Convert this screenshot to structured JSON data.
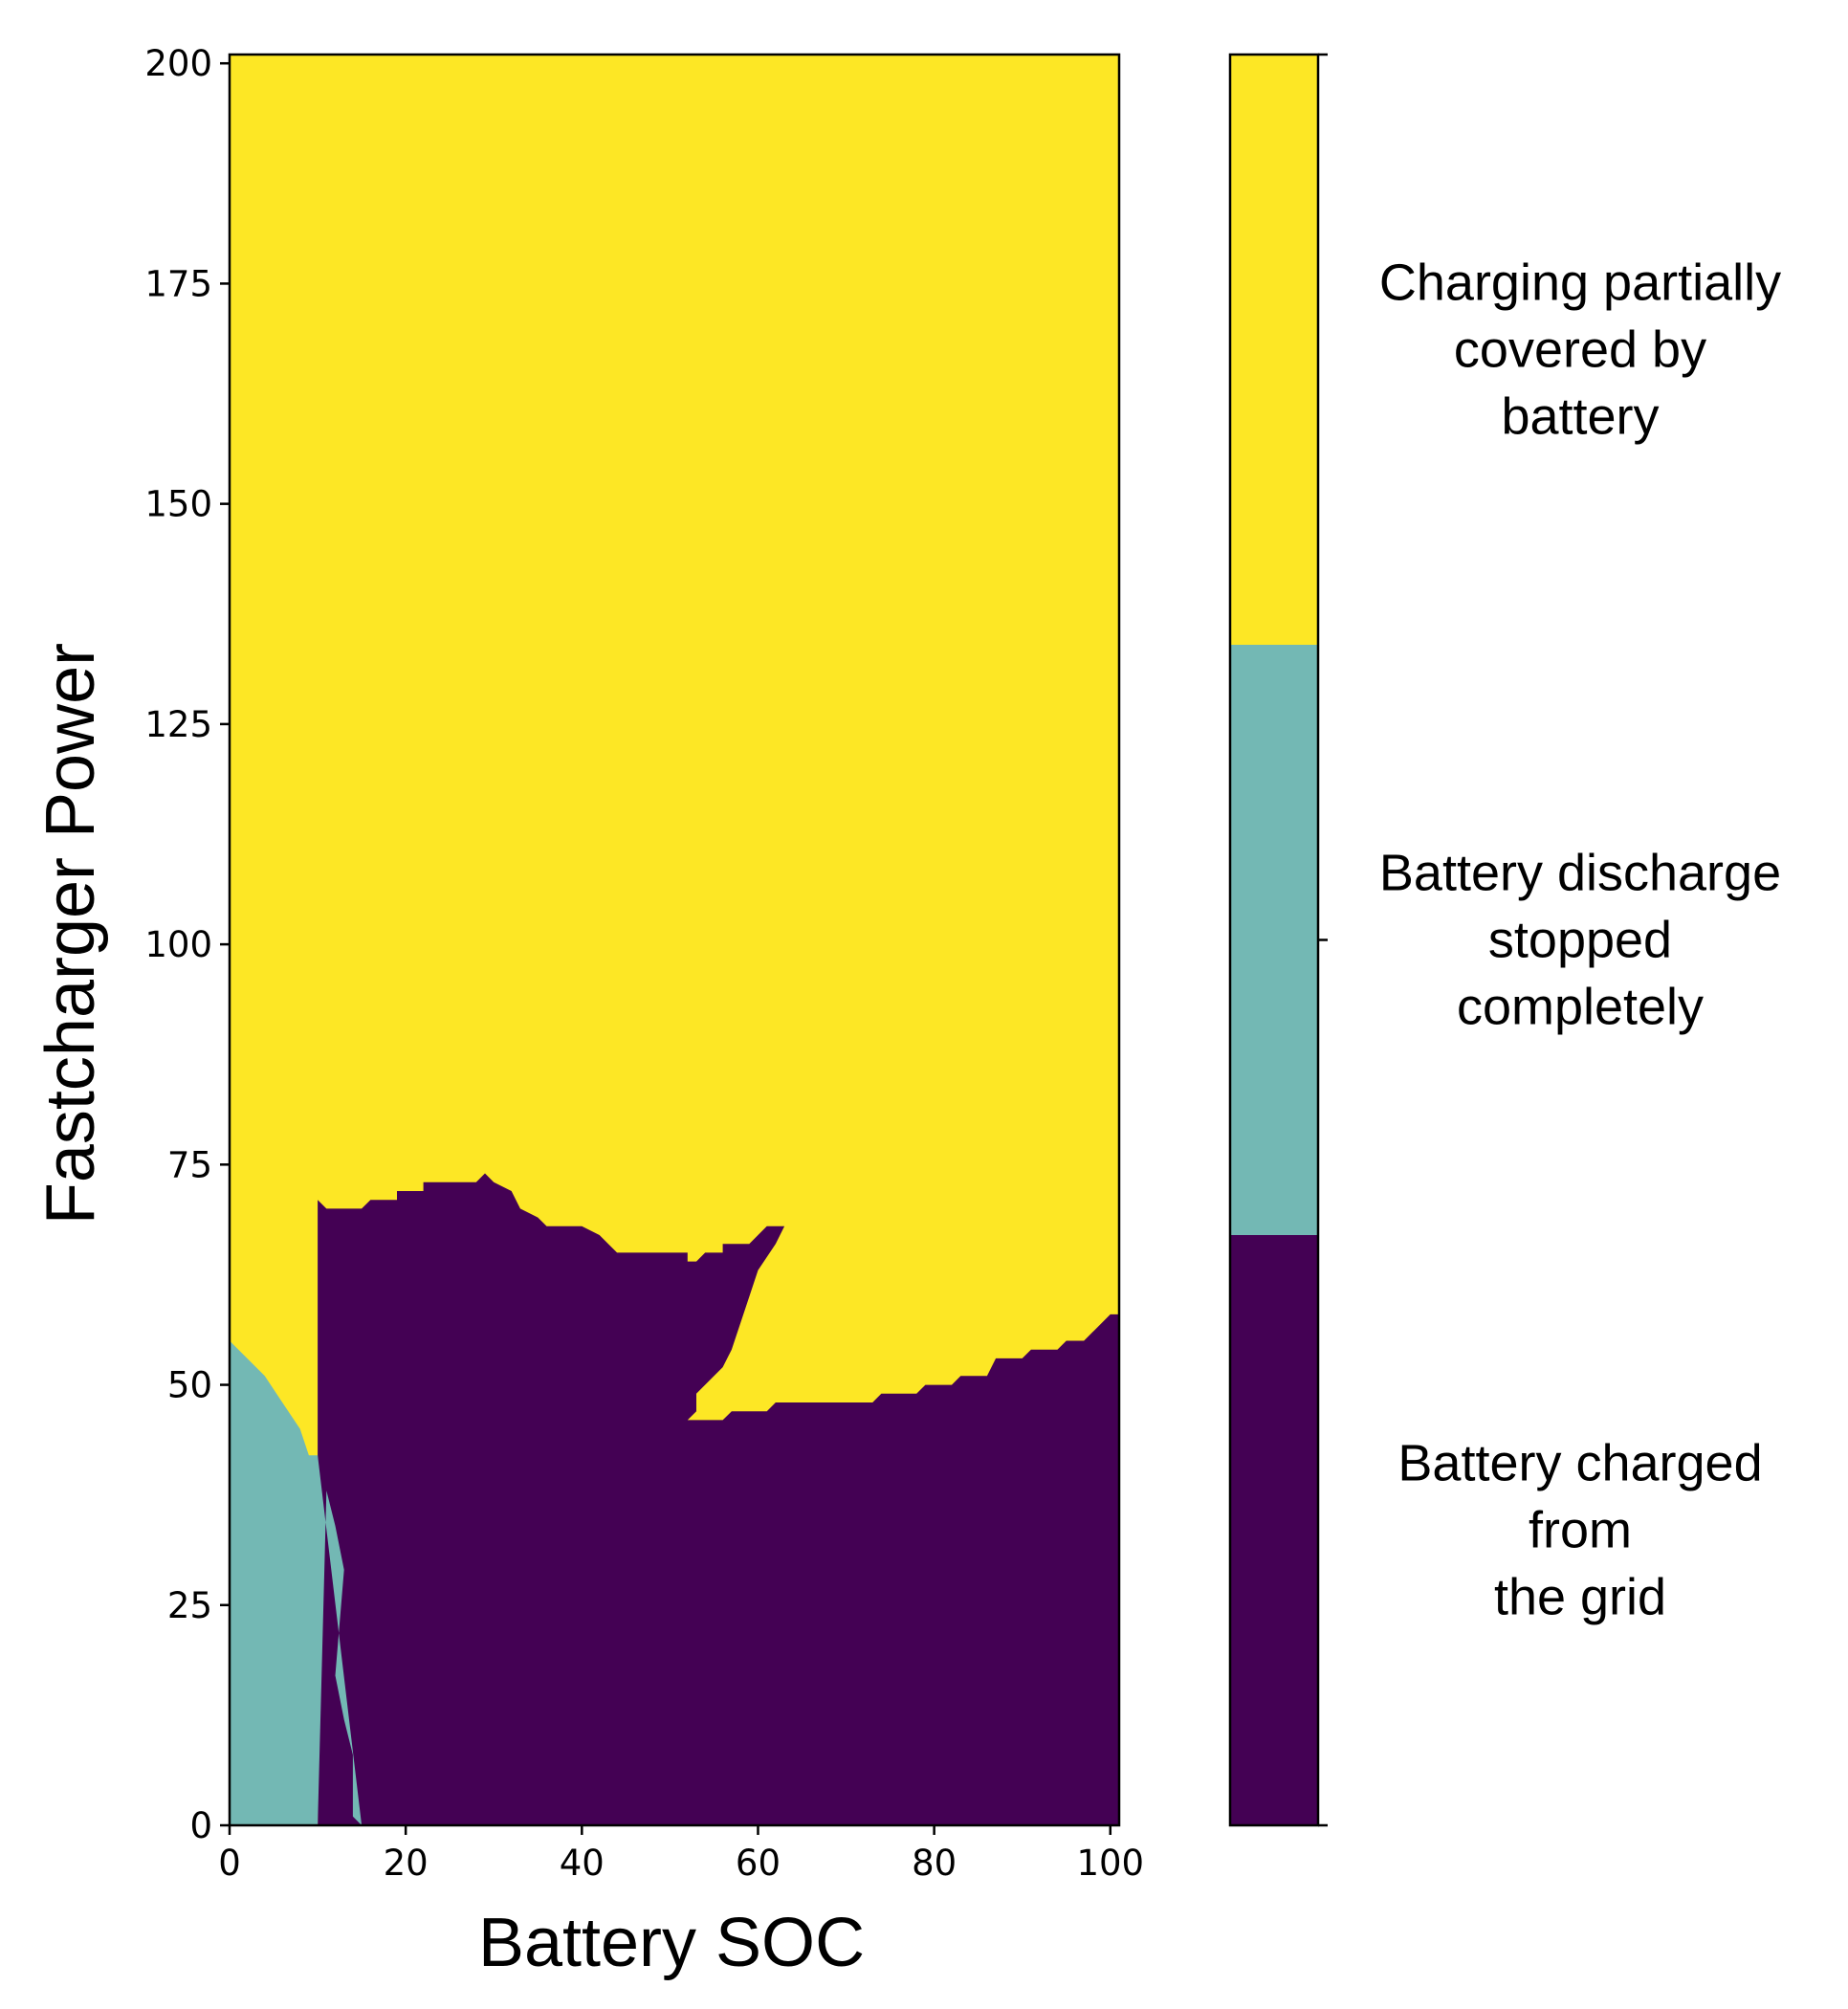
{
  "chart_data": {
    "type": "heatmap",
    "xlabel": "Battery SOC",
    "ylabel": "Fastcharger Power",
    "xlim": [
      0,
      101
    ],
    "ylim": [
      0,
      201
    ],
    "x_ticks": [
      0,
      20,
      40,
      60,
      80,
      100
    ],
    "y_ticks": [
      0,
      25,
      50,
      75,
      100,
      125,
      150,
      175,
      200
    ],
    "colors": {
      "grid": "#440154",
      "stopped": "#73b8b4",
      "partial": "#fde725"
    },
    "regions": {
      "teal_upper_boundary": [
        [
          0,
          55
        ],
        [
          2,
          53
        ],
        [
          4,
          51
        ],
        [
          6,
          48
        ],
        [
          8,
          45
        ],
        [
          9,
          42
        ],
        [
          10,
          42
        ]
      ],
      "teal_right_boundary": [
        [
          10,
          0
        ],
        [
          10,
          42
        ],
        [
          11,
          38
        ],
        [
          12,
          34
        ],
        [
          13,
          29
        ],
        [
          12,
          17
        ],
        [
          13,
          12
        ],
        [
          14,
          8
        ],
        [
          14,
          1
        ],
        [
          15,
          0
        ]
      ],
      "grid_upper_boundary": [
        [
          10,
          42
        ],
        [
          10,
          71
        ],
        [
          11,
          70
        ],
        [
          15,
          70
        ],
        [
          16,
          71
        ],
        [
          19,
          71
        ],
        [
          19,
          72
        ],
        [
          22,
          72
        ],
        [
          22,
          73
        ],
        [
          28,
          73
        ],
        [
          29,
          74
        ],
        [
          30,
          73
        ],
        [
          32,
          72
        ],
        [
          33,
          70
        ],
        [
          35,
          69
        ],
        [
          36,
          68
        ],
        [
          40,
          68
        ],
        [
          42,
          67
        ],
        [
          43,
          66
        ],
        [
          44,
          65
        ],
        [
          52,
          65
        ],
        [
          52,
          64
        ],
        [
          53,
          64
        ],
        [
          54,
          65
        ],
        [
          56,
          65
        ],
        [
          56,
          66
        ],
        [
          59,
          66
        ],
        [
          60,
          67
        ],
        [
          61,
          68
        ],
        [
          63,
          68
        ],
        [
          62,
          66
        ],
        [
          60,
          63
        ],
        [
          59,
          60
        ],
        [
          58,
          57
        ],
        [
          57,
          54
        ],
        [
          56,
          52
        ],
        [
          53,
          49
        ],
        [
          53,
          47
        ],
        [
          52,
          46
        ],
        [
          56,
          46
        ],
        [
          57,
          47
        ],
        [
          61,
          47
        ],
        [
          62,
          48
        ],
        [
          73,
          48
        ],
        [
          74,
          49
        ],
        [
          78,
          49
        ],
        [
          79,
          50
        ],
        [
          82,
          50
        ],
        [
          83,
          51
        ],
        [
          86,
          51
        ],
        [
          87,
          53
        ],
        [
          90,
          53
        ],
        [
          91,
          54
        ],
        [
          94,
          54
        ],
        [
          95,
          55
        ],
        [
          97,
          55
        ],
        [
          98,
          56
        ],
        [
          99,
          57
        ],
        [
          100,
          58
        ],
        [
          101,
          58
        ]
      ]
    },
    "colorbar": {
      "categories": [
        {
          "key": "grid",
          "label_lines": [
            "Battery charged",
            "from",
            "the grid"
          ]
        },
        {
          "key": "stopped",
          "label_lines": [
            "Battery discharge",
            "stopped",
            "completely"
          ]
        },
        {
          "key": "partial",
          "label_lines": [
            "Charging partially",
            "covered by",
            "battery"
          ]
        }
      ]
    }
  }
}
